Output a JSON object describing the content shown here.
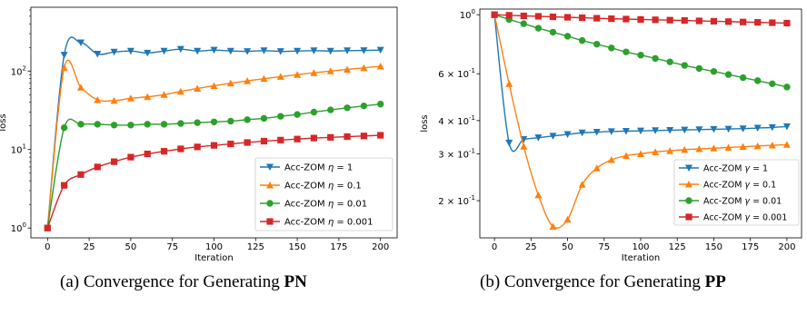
{
  "chart_data": [
    {
      "type": "line",
      "title": "",
      "xlabel": "Iteration",
      "ylabel": "loss",
      "yscale": "log",
      "xlim": [
        -10,
        210
      ],
      "ylim": [
        0.75,
        650
      ],
      "xticks": [
        "0",
        "25",
        "50",
        "75",
        "100",
        "125",
        "150",
        "175",
        "200"
      ],
      "yticks": [
        "10^0",
        "10^1",
        "10^2"
      ],
      "grid": false,
      "legend_position": "lower-right",
      "caption": {
        "prefix": "(a) Convergence for Generating ",
        "bold": "PN"
      },
      "x": [
        0,
        10,
        20,
        30,
        40,
        50,
        60,
        70,
        80,
        90,
        100,
        110,
        120,
        130,
        140,
        150,
        160,
        170,
        180,
        190,
        200
      ],
      "series": [
        {
          "name": "Acc-ZOM η = 1",
          "label_prefix": "Acc-ZOM ",
          "symbol": "η",
          "label_suffix": " = 1",
          "color": "#1f77b4",
          "marker": "triangle-down",
          "values": [
            1,
            160,
            230,
            165,
            175,
            180,
            170,
            180,
            190,
            180,
            185,
            180,
            178,
            182,
            178,
            180,
            182,
            180,
            182,
            183,
            185
          ]
        },
        {
          "name": "Acc-ZOM η = 0.1",
          "label_prefix": "Acc-ZOM ",
          "symbol": "η",
          "label_suffix": " = 0.1",
          "color": "#ff7f0e",
          "marker": "triangle-up",
          "values": [
            1,
            110,
            62,
            43,
            42,
            45,
            47,
            50,
            55,
            60,
            65,
            70,
            75,
            80,
            85,
            90,
            95,
            100,
            105,
            110,
            115
          ]
        },
        {
          "name": "Acc-ZOM η = 0.01",
          "label_prefix": "Acc-ZOM ",
          "symbol": "η",
          "label_suffix": " = 0.01",
          "color": "#2ca02c",
          "marker": "circle",
          "values": [
            1,
            19,
            21,
            21,
            20.5,
            20.5,
            21,
            21,
            21.5,
            22,
            22.5,
            23,
            24,
            25,
            26.5,
            28,
            30,
            32,
            34,
            36,
            38
          ]
        },
        {
          "name": "Acc-ZOM η = 0.001",
          "label_prefix": "Acc-ZOM ",
          "symbol": "η",
          "label_suffix": " = 0.001",
          "color": "#d62728",
          "marker": "square",
          "values": [
            1,
            3.5,
            4.8,
            6.0,
            7.0,
            8.0,
            8.8,
            9.5,
            10.2,
            10.8,
            11.3,
            11.8,
            12.3,
            12.8,
            13.2,
            13.6,
            14.0,
            14.3,
            14.6,
            14.9,
            15.2
          ]
        }
      ]
    },
    {
      "type": "line",
      "title": "",
      "xlabel": "Iteration",
      "ylabel": "loss",
      "yscale": "log",
      "xlim": [
        -10,
        210
      ],
      "ylim": [
        0.145,
        1.05
      ],
      "xticks": [
        "0",
        "25",
        "50",
        "75",
        "100",
        "125",
        "150",
        "175",
        "200"
      ],
      "yticks": [
        "10^0",
        "6 × 10^-1",
        "4 × 10^-1",
        "3 × 10^-1",
        "2 × 10^-1"
      ],
      "grid": false,
      "legend_position": "lower-right",
      "caption": {
        "prefix": "(b) Convergence for Generating ",
        "bold": "PP"
      },
      "x": [
        0,
        10,
        20,
        30,
        40,
        50,
        60,
        70,
        80,
        90,
        100,
        110,
        120,
        130,
        140,
        150,
        160,
        170,
        180,
        190,
        200
      ],
      "series": [
        {
          "name": "Acc-ZOM γ = 1",
          "label_prefix": "Acc-ZOM ",
          "symbol": "γ",
          "label_suffix": " = 1",
          "color": "#1f77b4",
          "marker": "triangle-down",
          "values": [
            1.0,
            0.33,
            0.34,
            0.345,
            0.35,
            0.355,
            0.36,
            0.362,
            0.364,
            0.365,
            0.366,
            0.367,
            0.368,
            0.369,
            0.37,
            0.371,
            0.372,
            0.373,
            0.375,
            0.377,
            0.38
          ]
        },
        {
          "name": "Acc-ZOM γ = 0.1",
          "label_prefix": "Acc-ZOM ",
          "symbol": "γ",
          "label_suffix": " = 0.1",
          "color": "#ff7f0e",
          "marker": "triangle-up",
          "values": [
            1.0,
            0.55,
            0.32,
            0.21,
            0.16,
            0.17,
            0.23,
            0.265,
            0.285,
            0.295,
            0.3,
            0.305,
            0.308,
            0.311,
            0.313,
            0.315,
            0.317,
            0.319,
            0.321,
            0.323,
            0.325
          ]
        },
        {
          "name": "Acc-ZOM γ = 0.01",
          "label_prefix": "Acc-ZOM ",
          "symbol": "γ",
          "label_suffix": " = 0.01",
          "color": "#2ca02c",
          "marker": "circle",
          "values": [
            1.0,
            0.96,
            0.925,
            0.89,
            0.86,
            0.83,
            0.8,
            0.775,
            0.75,
            0.725,
            0.705,
            0.685,
            0.665,
            0.645,
            0.628,
            0.612,
            0.596,
            0.58,
            0.565,
            0.55,
            0.535
          ]
        },
        {
          "name": "Acc-ZOM γ = 0.001",
          "label_prefix": "Acc-ZOM ",
          "symbol": "γ",
          "label_suffix": " = 0.001",
          "color": "#d62728",
          "marker": "square",
          "values": [
            1.0,
            0.995,
            0.99,
            0.986,
            0.982,
            0.978,
            0.974,
            0.97,
            0.966,
            0.963,
            0.96,
            0.957,
            0.954,
            0.951,
            0.948,
            0.945,
            0.942,
            0.939,
            0.936,
            0.933,
            0.93
          ]
        }
      ]
    }
  ]
}
